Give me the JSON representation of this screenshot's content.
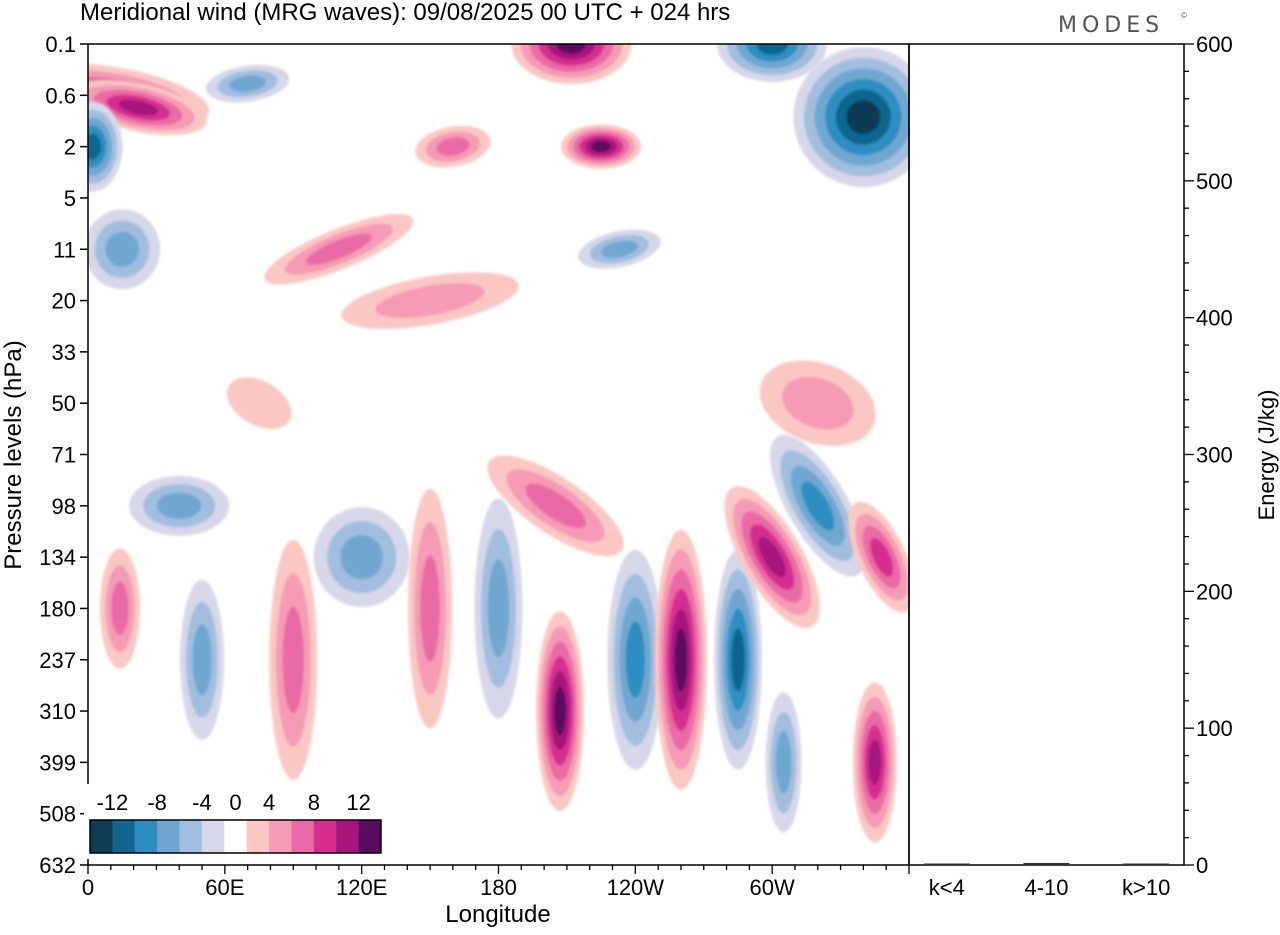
{
  "header": {
    "title": "Meridional wind (MRG waves):  09/08/2025  00 UTC  + 024 hrs",
    "brand": "MODES",
    "brand_mark": "©"
  },
  "chart_data": [
    {
      "type": "heatmap",
      "title": "Meridional wind (MRG waves):  09/08/2025  00 UTC  + 024 hrs",
      "xlabel": "Longitude",
      "ylabel": "Pressure levels (hPa)",
      "x_ticks": [
        "0",
        "60E",
        "120E",
        "180",
        "120W",
        "60W"
      ],
      "x_tick_values": [
        0,
        60,
        120,
        180,
        240,
        300
      ],
      "xlim": [
        0,
        360
      ],
      "y_ticks": [
        "0.1",
        "0.6",
        "2",
        "5",
        "11",
        "20",
        "33",
        "50",
        "71",
        "98",
        "134",
        "180",
        "237",
        "310",
        "399",
        "508",
        "632"
      ],
      "y_scale": "model levels (top 0.1 hPa, bottom 632 hPa)",
      "colorbar": {
        "label_values": [
          "-12",
          "-8",
          "-4",
          "0",
          "4",
          "8",
          "12"
        ],
        "bins": [
          -14,
          -12,
          -10,
          -8,
          -6,
          -4,
          -2,
          2,
          4,
          6,
          8,
          10,
          12,
          14
        ],
        "colors": [
          "#0f3b53",
          "#11668f",
          "#2f8ec1",
          "#6fa7d1",
          "#a2bedf",
          "#d6d8e9",
          "#ffffff",
          "#fbc7c3",
          "#f59bb5",
          "#ea6aa5",
          "#d52e8f",
          "#a6157c",
          "#5a0a5f"
        ],
        "placement": "bottom-left"
      },
      "features": [
        {
          "sign": "pos",
          "lon": 12,
          "level": "0.6",
          "value": 8
        },
        {
          "sign": "pos",
          "lon": 22,
          "level": "0.8",
          "value": 10
        },
        {
          "sign": "neg",
          "lon": 2,
          "level": "2",
          "value": -10
        },
        {
          "sign": "neg",
          "lon": 70,
          "level": "0.4",
          "value": -6
        },
        {
          "sign": "pos",
          "lon": 110,
          "level": "11",
          "value": 6
        },
        {
          "sign": "pos",
          "lon": 160,
          "level": "2",
          "value": 6
        },
        {
          "sign": "pos",
          "lon": 212,
          "level": "0.1",
          "value": 14
        },
        {
          "sign": "pos",
          "lon": 225,
          "level": "2",
          "value": 12
        },
        {
          "sign": "neg",
          "lon": 300,
          "level": "0.1",
          "value": -10
        },
        {
          "sign": "neg",
          "lon": 340,
          "level": "1",
          "value": -14
        },
        {
          "sign": "neg",
          "lon": 233,
          "level": "11",
          "value": -6
        },
        {
          "sign": "neg",
          "lon": 15,
          "level": "11",
          "value": -6
        },
        {
          "sign": "pos",
          "lon": 150,
          "level": "20",
          "value": 4
        },
        {
          "sign": "pos",
          "lon": 320,
          "level": "50",
          "value": 4
        },
        {
          "sign": "pos",
          "lon": 75,
          "level": "50",
          "value": 2
        },
        {
          "sign": "neg",
          "lon": 40,
          "level": "98",
          "value": -6
        },
        {
          "sign": "neg",
          "lon": 120,
          "level": "134",
          "value": -6
        },
        {
          "sign": "pos",
          "lon": 90,
          "level": "237",
          "value": 6
        },
        {
          "sign": "pos",
          "lon": 150,
          "level": "180",
          "value": 6
        },
        {
          "sign": "neg",
          "lon": 180,
          "level": "180",
          "value": -6
        },
        {
          "sign": "pos",
          "lon": 205,
          "level": "98",
          "value": 6
        },
        {
          "sign": "pos",
          "lon": 207,
          "level": "310",
          "value": 12
        },
        {
          "sign": "neg",
          "lon": 240,
          "level": "237",
          "value": -8
        },
        {
          "sign": "pos",
          "lon": 260,
          "level": "237",
          "value": 14
        },
        {
          "sign": "neg",
          "lon": 285,
          "level": "237",
          "value": -10
        },
        {
          "sign": "pos",
          "lon": 300,
          "level": "134",
          "value": 10
        },
        {
          "sign": "neg",
          "lon": 320,
          "level": "98",
          "value": -8
        },
        {
          "sign": "pos",
          "lon": 348,
          "level": "134",
          "value": 8
        },
        {
          "sign": "pos",
          "lon": 345,
          "level": "399",
          "value": 10
        },
        {
          "sign": "neg",
          "lon": 305,
          "level": "399",
          "value": -6
        },
        {
          "sign": "pos",
          "lon": 14,
          "level": "180",
          "value": 6
        },
        {
          "sign": "neg",
          "lon": 50,
          "level": "237",
          "value": -6
        }
      ]
    },
    {
      "type": "bar",
      "ylabel": "Energy (J/kg)",
      "categories": [
        "k<4",
        "4-10",
        "k>10"
      ],
      "values": [
        0.5,
        1.5,
        0.5
      ],
      "ylim": [
        0,
        600
      ],
      "y_ticks": [
        "0",
        "100",
        "200",
        "300",
        "400",
        "500",
        "600"
      ],
      "y_tick_values": [
        0,
        100,
        200,
        300,
        400,
        500,
        600
      ]
    }
  ]
}
